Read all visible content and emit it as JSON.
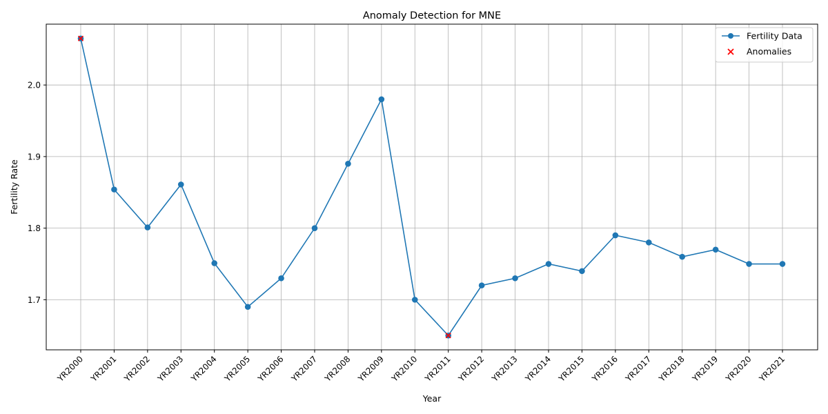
{
  "chart_data": {
    "type": "line",
    "title": "Anomaly Detection for MNE",
    "xlabel": "Year",
    "ylabel": "Fertility Rate",
    "categories": [
      "YR2000",
      "YR2001",
      "YR2002",
      "YR2003",
      "YR2004",
      "YR2005",
      "YR2006",
      "YR2007",
      "YR2008",
      "YR2009",
      "YR2010",
      "YR2011",
      "YR2012",
      "YR2013",
      "YR2014",
      "YR2015",
      "YR2016",
      "YR2017",
      "YR2018",
      "YR2019",
      "YR2020",
      "YR2021"
    ],
    "series": [
      {
        "name": "Fertility Data",
        "color": "#1f77b4",
        "marker": "circle",
        "values": [
          2.065,
          1.854,
          1.801,
          1.861,
          1.751,
          1.69,
          1.73,
          1.8,
          1.89,
          1.98,
          1.7,
          1.65,
          1.72,
          1.73,
          1.75,
          1.74,
          1.79,
          1.78,
          1.76,
          1.77,
          1.75,
          1.75
        ]
      },
      {
        "name": "Anomalies",
        "color": "#ff0000",
        "marker": "x",
        "points": [
          {
            "x": "YR2000",
            "y": 2.065
          },
          {
            "x": "YR2011",
            "y": 1.65
          }
        ]
      }
    ],
    "ylim": [
      1.63,
      2.085
    ],
    "yticks": [
      1.7,
      1.8,
      1.9,
      2.0
    ],
    "ytick_labels": [
      "1.7",
      "1.8",
      "1.9",
      "2.0"
    ],
    "grid": true,
    "legend_position": "top-right"
  }
}
